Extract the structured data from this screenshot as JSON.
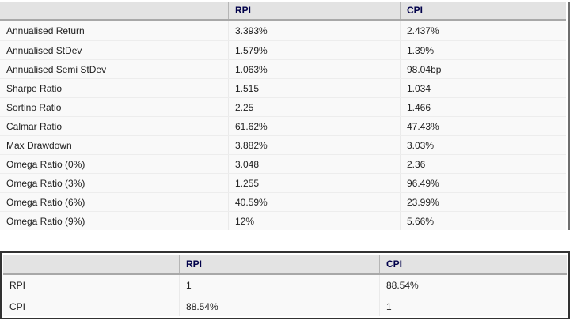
{
  "colors": {
    "header_bg": "#e3e3e3",
    "header_text": "#00004a",
    "header_rule": "#a8a8a8",
    "row_bg": "#f9f9f9",
    "row_separator": "#ededed",
    "body_text": "#202020",
    "table1_right_edge": "#6e6e6e",
    "table2_border": "#323232"
  },
  "stats_table": {
    "columns": [
      "",
      "RPI",
      "CPI"
    ],
    "rows": [
      {
        "label": "Annualised Return",
        "rpi": "3.393%",
        "cpi": "2.437%"
      },
      {
        "label": "Annualised StDev",
        "rpi": "1.579%",
        "cpi": "1.39%"
      },
      {
        "label": "Annualised Semi StDev",
        "rpi": "1.063%",
        "cpi": "98.04bp"
      },
      {
        "label": "Sharpe Ratio",
        "rpi": "1.515",
        "cpi": "1.034"
      },
      {
        "label": "Sortino Ratio",
        "rpi": "2.25",
        "cpi": "1.466"
      },
      {
        "label": "Calmar Ratio",
        "rpi": "61.62%",
        "cpi": "47.43%"
      },
      {
        "label": "Max Drawdown",
        "rpi": "3.882%",
        "cpi": "3.03%"
      },
      {
        "label": "Omega Ratio (0%)",
        "rpi": "3.048",
        "cpi": "2.36"
      },
      {
        "label": "Omega Ratio (3%)",
        "rpi": "1.255",
        "cpi": "96.49%"
      },
      {
        "label": "Omega Ratio (6%)",
        "rpi": "40.59%",
        "cpi": "23.99%"
      },
      {
        "label": "Omega Ratio (9%)",
        "rpi": "12%",
        "cpi": "5.66%"
      }
    ]
  },
  "correlation_table": {
    "columns": [
      "",
      "RPI",
      "CPI"
    ],
    "rows": [
      {
        "label": "RPI",
        "rpi": "1",
        "cpi": "88.54%"
      },
      {
        "label": "CPI",
        "rpi": "88.54%",
        "cpi": "1"
      }
    ]
  }
}
